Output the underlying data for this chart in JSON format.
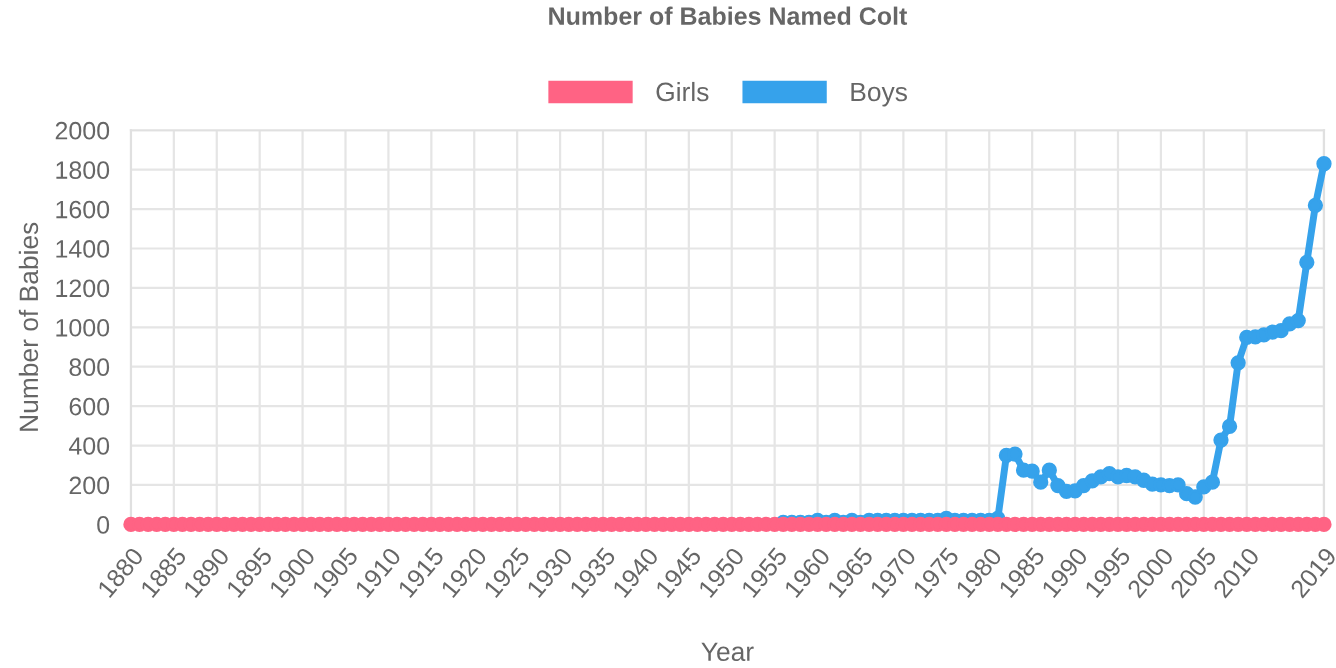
{
  "chart_data": {
    "type": "line",
    "title": "Number of Babies Named Colt",
    "xlabel": "Year",
    "ylabel": "Number of Babies",
    "x": [
      1880,
      1881,
      1882,
      1883,
      1884,
      1885,
      1886,
      1887,
      1888,
      1889,
      1890,
      1891,
      1892,
      1893,
      1894,
      1895,
      1896,
      1897,
      1898,
      1899,
      1900,
      1901,
      1902,
      1903,
      1904,
      1905,
      1906,
      1907,
      1908,
      1909,
      1910,
      1911,
      1912,
      1913,
      1914,
      1915,
      1916,
      1917,
      1918,
      1919,
      1920,
      1921,
      1922,
      1923,
      1924,
      1925,
      1926,
      1927,
      1928,
      1929,
      1930,
      1931,
      1932,
      1933,
      1934,
      1935,
      1936,
      1937,
      1938,
      1939,
      1940,
      1941,
      1942,
      1943,
      1944,
      1945,
      1946,
      1947,
      1948,
      1949,
      1950,
      1951,
      1952,
      1953,
      1954,
      1955,
      1956,
      1957,
      1958,
      1959,
      1960,
      1961,
      1962,
      1963,
      1964,
      1965,
      1966,
      1967,
      1968,
      1969,
      1970,
      1971,
      1972,
      1973,
      1974,
      1975,
      1976,
      1977,
      1978,
      1979,
      1980,
      1981,
      1982,
      1983,
      1984,
      1985,
      1986,
      1987,
      1988,
      1989,
      1990,
      1991,
      1992,
      1993,
      1994,
      1995,
      1996,
      1997,
      1998,
      1999,
      2000,
      2001,
      2002,
      2003,
      2004,
      2005,
      2006,
      2007,
      2008,
      2009,
      2010,
      2011,
      2012,
      2013,
      2014,
      2015,
      2016,
      2017,
      2018,
      2019
    ],
    "series": [
      {
        "name": "Girls",
        "color": "#ff6384",
        "values": [
          0,
          0,
          0,
          0,
          0,
          0,
          0,
          0,
          0,
          0,
          0,
          0,
          0,
          0,
          0,
          0,
          0,
          0,
          0,
          0,
          0,
          0,
          0,
          0,
          0,
          0,
          0,
          0,
          0,
          0,
          0,
          0,
          0,
          0,
          0,
          0,
          0,
          0,
          0,
          0,
          0,
          0,
          0,
          0,
          0,
          0,
          0,
          0,
          0,
          0,
          0,
          0,
          0,
          0,
          0,
          0,
          0,
          0,
          0,
          0,
          0,
          0,
          0,
          0,
          0,
          0,
          0,
          0,
          0,
          0,
          0,
          0,
          0,
          0,
          0,
          0,
          0,
          0,
          0,
          0,
          0,
          0,
          0,
          0,
          0,
          0,
          0,
          0,
          0,
          0,
          0,
          0,
          0,
          0,
          0,
          0,
          0,
          0,
          0,
          0,
          0,
          0,
          0,
          0,
          0,
          0,
          0,
          0,
          0,
          0,
          0,
          0,
          0,
          0,
          0,
          0,
          0,
          0,
          0,
          0,
          0,
          0,
          0,
          0,
          0,
          0,
          0,
          0,
          0,
          0,
          0,
          0,
          0,
          0,
          0,
          0,
          0,
          0,
          0,
          0
        ]
      },
      {
        "name": "Boys",
        "color": "#36a2eb",
        "values": [
          null,
          null,
          null,
          null,
          null,
          null,
          null,
          null,
          null,
          null,
          null,
          null,
          null,
          null,
          null,
          null,
          null,
          null,
          null,
          null,
          null,
          null,
          null,
          null,
          null,
          null,
          null,
          null,
          null,
          null,
          null,
          null,
          null,
          null,
          null,
          null,
          null,
          null,
          null,
          null,
          null,
          null,
          null,
          null,
          null,
          null,
          null,
          null,
          null,
          null,
          null,
          null,
          null,
          null,
          null,
          null,
          null,
          null,
          null,
          null,
          null,
          null,
          null,
          null,
          null,
          null,
          null,
          null,
          null,
          null,
          null,
          null,
          null,
          null,
          null,
          null,
          10,
          10,
          10,
          10,
          20,
          10,
          20,
          10,
          20,
          10,
          20,
          20,
          20,
          20,
          20,
          20,
          20,
          20,
          20,
          30,
          20,
          20,
          20,
          20,
          20,
          30,
          350,
          357,
          275,
          270,
          214,
          275,
          197,
          167,
          170,
          197,
          221,
          241,
          258,
          241,
          248,
          241,
          224,
          204,
          200,
          197,
          200,
          156,
          139,
          190,
          214,
          428,
          497,
          820,
          949,
          952,
          962,
          976,
          983,
          1017,
          1034,
          1330,
          1619,
          1830
        ]
      }
    ],
    "xlim": [
      1880,
      2019
    ],
    "xticks": [
      1880,
      1885,
      1890,
      1895,
      1900,
      1905,
      1910,
      1915,
      1920,
      1925,
      1930,
      1935,
      1940,
      1945,
      1950,
      1955,
      1960,
      1965,
      1970,
      1975,
      1980,
      1985,
      1990,
      1995,
      2000,
      2005,
      2010,
      2019
    ],
    "ylim": [
      0,
      2000
    ],
    "yticks": [
      0,
      200,
      400,
      600,
      800,
      1000,
      1200,
      1400,
      1600,
      1800,
      2000
    ],
    "grid": true,
    "legend": "top",
    "marker": "circle",
    "line_style": "solid"
  }
}
